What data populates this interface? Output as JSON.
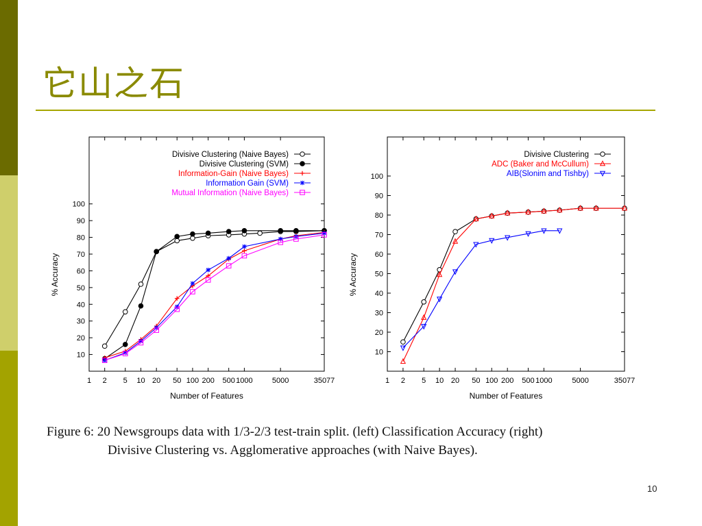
{
  "slide": {
    "title": "它山之石",
    "page_number": "10",
    "colors": {
      "bar_top": "#6b6b00",
      "bar_mid": "#cfcf6b",
      "bar_bottom": "#a3a300",
      "title": "#8a8a00",
      "rule": "#a6a600"
    }
  },
  "caption": {
    "line1": "Figure 6:  20 Newsgroups data with 1/3-2/3 test-train split.  (left) Classification Accuracy (right)",
    "line2": "Divisive Clustering vs. Agglomerative approaches (with Naive Bayes)."
  },
  "chart_data": [
    {
      "type": "line",
      "xscale": "log",
      "xlabel": "Number of Features",
      "ylabel": "% Accuracy",
      "xticks": [
        1,
        2,
        5,
        10,
        20,
        50,
        100,
        200,
        500,
        1000,
        5000,
        35077
      ],
      "xtick_labels": [
        "1",
        "2",
        "5",
        "10",
        "20",
        "50",
        "100",
        "200",
        "500",
        "1000",
        "5000",
        "35077"
      ],
      "yticks": [
        10,
        20,
        30,
        40,
        50,
        60,
        70,
        80,
        90,
        100
      ],
      "xlim": [
        1,
        35077
      ],
      "ylim": [
        0,
        140
      ],
      "legend_position": "top-right",
      "series": [
        {
          "name": "Divisive Clustering (Naive Bayes)",
          "color": "#000000",
          "marker": "circle-open",
          "x": [
            2,
            5,
            10,
            20,
            50,
            100,
            200,
            500,
            1000,
            2000,
            5000,
            10000,
            35077
          ],
          "y": [
            15,
            35.5,
            52,
            71.5,
            78,
            79.5,
            81,
            81.5,
            82,
            82.5,
            83.5,
            83.5,
            84
          ]
        },
        {
          "name": "Divisive Clustering (SVM)",
          "color": "#000000",
          "marker": "circle-filled",
          "x": [
            2,
            5,
            10,
            20,
            50,
            100,
            200,
            500,
            1000,
            5000,
            10000,
            35077
          ],
          "y": [
            7.5,
            16,
            39,
            71.5,
            80.5,
            82,
            82.5,
            83.5,
            84,
            84,
            84,
            84
          ]
        },
        {
          "name": "Information-Gain (Naive Bayes)",
          "color": "#ff0000",
          "marker": "plus",
          "x": [
            2,
            5,
            10,
            20,
            50,
            100,
            200,
            500,
            1000,
            5000,
            10000,
            35077
          ],
          "y": [
            8,
            12,
            19,
            27,
            43.5,
            51,
            57,
            67,
            72,
            79,
            81,
            83
          ]
        },
        {
          "name": "Information Gain (SVM)",
          "color": "#0000ff",
          "marker": "star",
          "x": [
            2,
            5,
            10,
            20,
            50,
            100,
            200,
            500,
            1000,
            5000,
            10000,
            35077
          ],
          "y": [
            6.5,
            11,
            18,
            26,
            38.5,
            52.5,
            60.5,
            67.5,
            74.5,
            79,
            80.5,
            82.5
          ]
        },
        {
          "name": "Mutual Information (Naive Bayes)",
          "color": "#ff00ff",
          "marker": "square-open",
          "x": [
            2,
            5,
            10,
            20,
            50,
            100,
            200,
            500,
            1000,
            5000,
            10000,
            35077
          ],
          "y": [
            6.5,
            10.5,
            17,
            24.5,
            37,
            47.5,
            54.5,
            63,
            69,
            77,
            79,
            81.5
          ]
        }
      ]
    },
    {
      "type": "line",
      "xscale": "log",
      "xlabel": "Number of Features",
      "ylabel": "% Accuracy",
      "xticks": [
        1,
        2,
        5,
        10,
        20,
        50,
        100,
        200,
        500,
        1000,
        5000,
        35077
      ],
      "xtick_labels": [
        "1",
        "2",
        "5",
        "10",
        "20",
        "50",
        "100",
        "200",
        "500",
        "1000",
        "5000",
        "35077"
      ],
      "yticks": [
        10,
        20,
        30,
        40,
        50,
        60,
        70,
        80,
        90,
        100
      ],
      "xlim": [
        1,
        35077
      ],
      "ylim": [
        0,
        120
      ],
      "legend_position": "top-right",
      "series": [
        {
          "name": "Divisive Clustering",
          "color": "#000000",
          "marker": "circle-open",
          "x": [
            2,
            5,
            10,
            20,
            50,
            100,
            200,
            500,
            1000,
            2000,
            5000,
            10000,
            35077
          ],
          "y": [
            15,
            35.5,
            52,
            71.5,
            78,
            79.5,
            81,
            81.5,
            82,
            82.5,
            83.5,
            83.5,
            83.5
          ]
        },
        {
          "name": "ADC (Baker and McCullum)",
          "color": "#ff0000",
          "marker": "triangle-up",
          "x": [
            2,
            5,
            10,
            20,
            50,
            100,
            200,
            500,
            1000,
            2000,
            5000,
            10000,
            35077
          ],
          "y": [
            5,
            27.5,
            49.5,
            66.5,
            78,
            79.5,
            81,
            81.5,
            82,
            82.5,
            83.5,
            83.5,
            83.5
          ]
        },
        {
          "name": "AIB(Slonim and Tishby)",
          "color": "#0000ff",
          "marker": "triangle-down",
          "x": [
            2,
            5,
            10,
            20,
            50,
            100,
            200,
            500,
            1000,
            2000
          ],
          "y": [
            12,
            23,
            37,
            51,
            65,
            67,
            68.5,
            70.5,
            72,
            72
          ]
        }
      ]
    }
  ]
}
